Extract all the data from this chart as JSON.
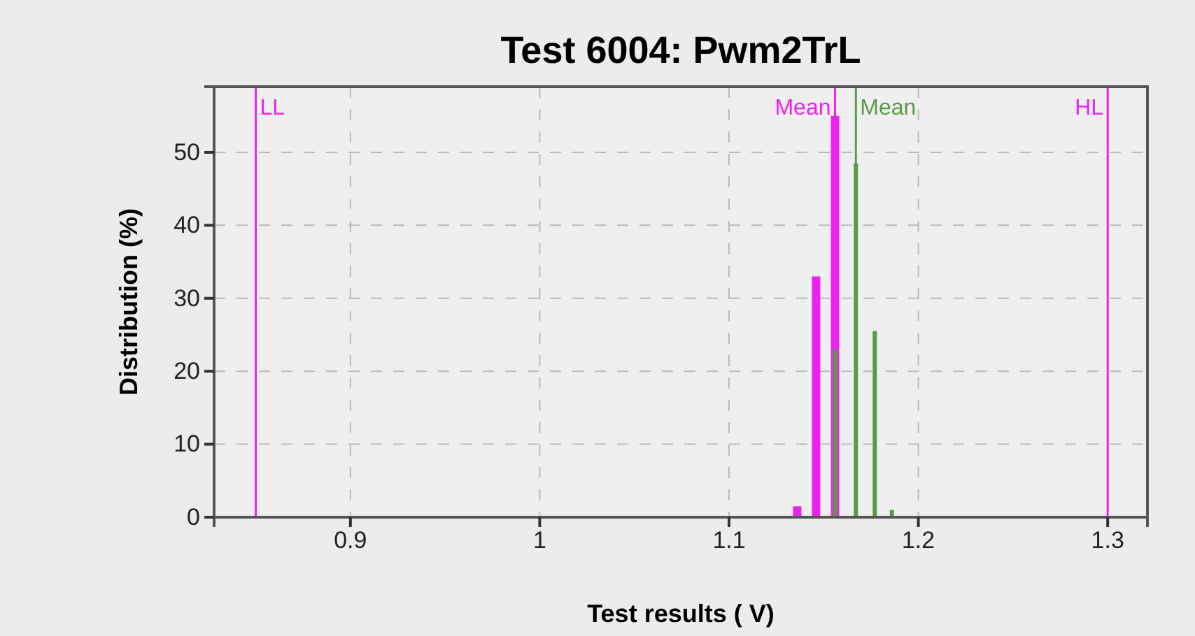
{
  "chart_data": {
    "type": "bar",
    "title": "Test 6004: Pwm2TrL",
    "xlabel": "Test results ( V)",
    "ylabel": "Distribution (%)",
    "series": [
      {
        "color": "#ee22ee",
        "x": [
          1.136,
          1.146,
          1.156
        ],
        "values": [
          1.5,
          33,
          55
        ]
      },
      {
        "color": "#5a9a48",
        "x": [
          1.156,
          1.167,
          1.177,
          1.186
        ],
        "values": [
          23,
          48.5,
          25.5,
          1
        ]
      }
    ],
    "xlim": [
      0.828,
      1.321
    ],
    "xticks": [
      0.9,
      1,
      1.1,
      1.2,
      1.3
    ],
    "ylim": [
      0,
      59
    ],
    "yticks": [
      0,
      10,
      20,
      30,
      40,
      50
    ],
    "grid": true,
    "ref_lines": [
      {
        "axis": "x",
        "value": 0.85,
        "label": "LL",
        "color": "#ee22ee"
      },
      {
        "axis": "x",
        "value": 1.3,
        "label": "HL",
        "color": "#ee22ee"
      },
      {
        "axis": "x",
        "value": 1.156,
        "label": "Mean",
        "color": "#ee22ee"
      },
      {
        "axis": "x",
        "value": 1.167,
        "label": "Mean",
        "color": "#5a9a48"
      }
    ]
  }
}
